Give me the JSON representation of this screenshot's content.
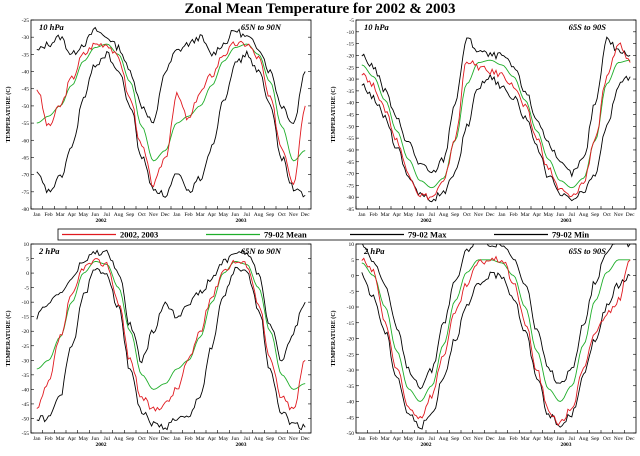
{
  "title": "Zonal Mean Temperature for 2002 & 2003",
  "colors": {
    "obs": "#e0191f",
    "mean": "#1fae2a",
    "max": "#000000",
    "min": "#000000"
  },
  "legend": [
    {
      "label": "2002, 2003",
      "color": "#e0191f"
    },
    {
      "label": "79-02 Mean",
      "color": "#1fae2a"
    },
    {
      "label": "79-02 Max",
      "color": "#000000"
    },
    {
      "label": "79-02 Min",
      "color": "#000000"
    }
  ],
  "chart_data": [
    {
      "type": "line",
      "level": "10 hPa",
      "region": "65N to 90N",
      "ylabel": "TEMPERATURE (C)",
      "ylim": [
        -80,
        -25
      ],
      "yticks": [
        -80,
        -75,
        -70,
        -65,
        -60,
        -55,
        -50,
        -45,
        -40,
        -35,
        -30,
        -25
      ],
      "x_months": [
        "Jan",
        "Feb",
        "Mar",
        "Apr",
        "May",
        "Jun",
        "Jul",
        "Aug",
        "Sep",
        "Oct",
        "Nov",
        "Dec",
        "Jan",
        "Feb",
        "Mar",
        "Apr",
        "May",
        "Jun",
        "Jul",
        "Aug",
        "Sep",
        "Oct",
        "Nov",
        "Dec"
      ],
      "years": [
        "2002",
        "2003"
      ],
      "series": [
        {
          "name": "2002, 2003",
          "values": [
            -45,
            -56,
            -50,
            -42,
            -35,
            -32,
            -32,
            -36,
            -48,
            -62,
            -73,
            -65,
            -47,
            -54,
            -46,
            -41,
            -35,
            -32,
            -32,
            -36,
            -48,
            -62,
            -72,
            -50
          ]
        },
        {
          "name": "79-02 Mean",
          "values": [
            -55,
            -53,
            -50,
            -44,
            -37,
            -33,
            -32,
            -35,
            -43,
            -56,
            -66,
            -63,
            -55,
            -53,
            -50,
            -44,
            -37,
            -33,
            -32,
            -35,
            -43,
            -56,
            -66,
            -63
          ]
        },
        {
          "name": "79-02 Max",
          "values": [
            -34,
            -32,
            -30,
            -35,
            -32,
            -28,
            -30,
            -33,
            -40,
            -50,
            -55,
            -40,
            -34,
            -32,
            -30,
            -35,
            -32,
            -28,
            -30,
            -33,
            -40,
            -50,
            -55,
            -40
          ]
        },
        {
          "name": "79-02 Min",
          "values": [
            -70,
            -75,
            -71,
            -62,
            -48,
            -38,
            -35,
            -40,
            -50,
            -65,
            -74,
            -76,
            -70,
            -75,
            -71,
            -62,
            -48,
            -38,
            -35,
            -40,
            -50,
            -65,
            -74,
            -76
          ]
        }
      ]
    },
    {
      "type": "line",
      "level": "10 hPa",
      "region": "65S to 90S",
      "ylabel": "TEMPERATURE (C)",
      "ylim": [
        -85,
        -5
      ],
      "yticks": [
        -85,
        -80,
        -75,
        -70,
        -65,
        -60,
        -55,
        -50,
        -45,
        -40,
        -35,
        -30,
        -25,
        -20,
        -15,
        -10,
        -5
      ],
      "x_months": [
        "Jan",
        "Feb",
        "Mar",
        "Apr",
        "May",
        "Jun",
        "Jul",
        "Aug",
        "Sep",
        "Oct",
        "Nov",
        "Dec",
        "Jan",
        "Feb",
        "Mar",
        "Apr",
        "May",
        "Jun",
        "Jul",
        "Aug",
        "Sep",
        "Oct",
        "Nov",
        "Dec"
      ],
      "years": [
        "2002",
        "2003"
      ],
      "series": [
        {
          "name": "2002, 2003",
          "values": [
            -27,
            -33,
            -43,
            -56,
            -70,
            -79,
            -80,
            -74,
            -55,
            -22,
            -25,
            -27,
            -28,
            -33,
            -42,
            -55,
            -68,
            -77,
            -80,
            -74,
            -55,
            -30,
            -15,
            -23
          ]
        },
        {
          "name": "79-02 Mean",
          "values": [
            -24,
            -29,
            -39,
            -52,
            -64,
            -73,
            -76,
            -72,
            -56,
            -32,
            -23,
            -22,
            -24,
            -29,
            -39,
            -52,
            -64,
            -73,
            -76,
            -72,
            -56,
            -32,
            -23,
            -22
          ]
        },
        {
          "name": "79-02 Max",
          "values": [
            -20,
            -25,
            -35,
            -47,
            -57,
            -66,
            -70,
            -64,
            -40,
            -13,
            -18,
            -20,
            -20,
            -25,
            -35,
            -47,
            -57,
            -66,
            -70,
            -64,
            -40,
            -13,
            -18,
            -20
          ]
        },
        {
          "name": "79-02 Min",
          "values": [
            -33,
            -38,
            -46,
            -59,
            -71,
            -79,
            -81,
            -78,
            -70,
            -50,
            -33,
            -29,
            -33,
            -38,
            -46,
            -59,
            -71,
            -79,
            -81,
            -78,
            -70,
            -50,
            -33,
            -29
          ]
        }
      ]
    },
    {
      "type": "line",
      "level": "2 hPa",
      "region": "65N to 90N",
      "ylabel": "TEMPERATURE (C)",
      "ylim": [
        -55,
        10
      ],
      "yticks": [
        -55,
        -50,
        -45,
        -40,
        -35,
        -30,
        -25,
        -20,
        -15,
        -10,
        -5,
        0,
        5,
        10
      ],
      "x_months": [
        "Jan",
        "Feb",
        "Mar",
        "Apr",
        "May",
        "Jun",
        "Jul",
        "Aug",
        "Sep",
        "Oct",
        "Nov",
        "Dec",
        "Jan",
        "Feb",
        "Mar",
        "Apr",
        "May",
        "Jun",
        "Jul",
        "Aug",
        "Sep",
        "Oct",
        "Nov",
        "Dec"
      ],
      "years": [
        "2002",
        "2003"
      ],
      "series": [
        {
          "name": "2002, 2003",
          "values": [
            -47,
            -38,
            -22,
            -8,
            2,
            4,
            3,
            -10,
            -30,
            -43,
            -47,
            -45,
            -40,
            -30,
            -20,
            -8,
            1,
            4,
            3,
            -10,
            -30,
            -43,
            -47,
            -30
          ]
        },
        {
          "name": "79-02 Mean",
          "values": [
            -33,
            -30,
            -22,
            -10,
            0,
            4,
            3,
            -5,
            -20,
            -35,
            -40,
            -38,
            -33,
            -30,
            -22,
            -10,
            0,
            4,
            3,
            -5,
            -20,
            -35,
            -40,
            -38
          ]
        },
        {
          "name": "79-02 Max",
          "values": [
            -15,
            -10,
            -7,
            -2,
            4,
            7,
            7,
            0,
            -18,
            -30,
            -20,
            -10,
            -15,
            -10,
            -7,
            -2,
            4,
            7,
            7,
            0,
            -18,
            -30,
            -20,
            -10
          ]
        },
        {
          "name": "79-02 Min",
          "values": [
            -50,
            -50,
            -42,
            -25,
            -8,
            1,
            0,
            -12,
            -33,
            -48,
            -52,
            -53,
            -50,
            -50,
            -42,
            -25,
            -8,
            1,
            0,
            -12,
            -33,
            -48,
            -52,
            -53
          ]
        }
      ]
    },
    {
      "type": "line",
      "level": "2 hPa",
      "region": "65S to 90S",
      "ylabel": "TEMPERATURE (C)",
      "ylim": [
        -50,
        10
      ],
      "yticks": [
        -50,
        -45,
        -40,
        -35,
        -30,
        -25,
        -20,
        -15,
        -10,
        -5,
        0,
        5,
        10
      ],
      "x_months": [
        "Jan",
        "Feb",
        "Mar",
        "Apr",
        "May",
        "Jun",
        "Jul",
        "Aug",
        "Sep",
        "Oct",
        "Nov",
        "Dec",
        "Jan",
        "Feb",
        "Mar",
        "Apr",
        "May",
        "Jun",
        "Jul",
        "Aug",
        "Sep",
        "Oct",
        "Nov",
        "Dec"
      ],
      "years": [
        "2002",
        "2003"
      ],
      "series": [
        {
          "name": "2002, 2003",
          "values": [
            5,
            1,
            -15,
            -30,
            -42,
            -45,
            -38,
            -25,
            -12,
            -3,
            4,
            5,
            5,
            -2,
            -15,
            -30,
            -43,
            -47,
            -42,
            -30,
            -18,
            -12,
            -8,
            5
          ]
        },
        {
          "name": "79-02 Mean",
          "values": [
            4,
            0,
            -10,
            -24,
            -36,
            -40,
            -35,
            -22,
            -8,
            1,
            5,
            5,
            4,
            0,
            -10,
            -24,
            -36,
            -40,
            -35,
            -22,
            -8,
            1,
            5,
            5
          ]
        },
        {
          "name": "79-02 Max",
          "values": [
            10,
            5,
            -3,
            -17,
            -30,
            -35,
            -30,
            -15,
            -2,
            8,
            12,
            10,
            10,
            5,
            -3,
            -17,
            -30,
            -35,
            -30,
            -15,
            -2,
            8,
            12,
            10
          ]
        },
        {
          "name": "79-02 Min",
          "values": [
            0,
            -7,
            -18,
            -32,
            -44,
            -48,
            -44,
            -32,
            -20,
            -10,
            -3,
            0,
            0,
            -7,
            -18,
            -32,
            -44,
            -48,
            -44,
            -32,
            -20,
            -10,
            -3,
            0
          ]
        }
      ]
    }
  ]
}
